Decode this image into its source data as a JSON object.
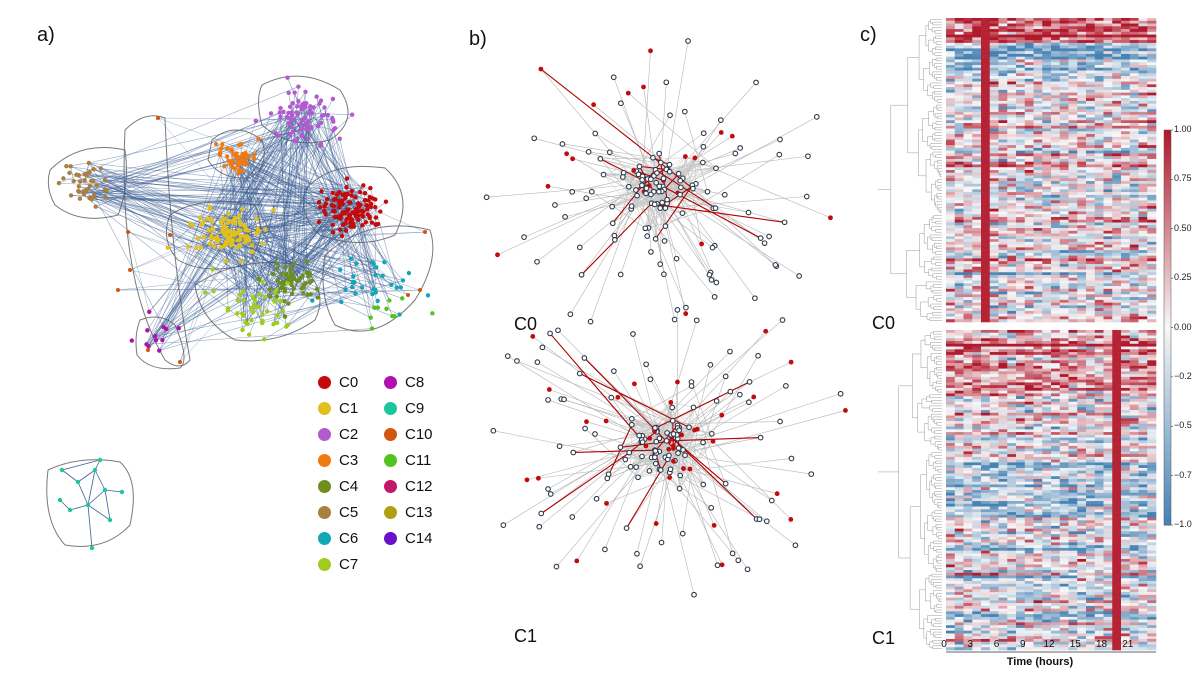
{
  "panel_labels": {
    "a": "a)",
    "b": "b)",
    "c": "c)"
  },
  "network_b": {
    "top_label": "C0",
    "bottom_label": "C1"
  },
  "legend": [
    {
      "label": "C0",
      "color": "#c40a0a"
    },
    {
      "label": "C8",
      "color": "#b010b0"
    },
    {
      "label": "C1",
      "color": "#e1bf1f"
    },
    {
      "label": "C9",
      "color": "#1ec79a"
    },
    {
      "label": "C2",
      "color": "#b45ad0"
    },
    {
      "label": "C10",
      "color": "#d1560e"
    },
    {
      "label": "C3",
      "color": "#f07a12"
    },
    {
      "label": "C11",
      "color": "#52c41e"
    },
    {
      "label": "C4",
      "color": "#6f8e1e"
    },
    {
      "label": "C12",
      "color": "#c2186b"
    },
    {
      "label": "C5",
      "color": "#a98040"
    },
    {
      "label": "C13",
      "color": "#b0a010"
    },
    {
      "label": "C6",
      "color": "#12a7b7"
    },
    {
      "label": "C14",
      "color": "#6a10c8"
    },
    {
      "label": "C7",
      "color": "#9fcc1f"
    }
  ],
  "heatmap": {
    "top_label": "C0",
    "bottom_label": "C1",
    "x_ticks": [
      "0",
      "3",
      "6",
      "9",
      "12",
      "15",
      "18",
      "21"
    ],
    "x_title": "Time (hours)",
    "colorbar_ticks": [
      "1.00",
      "0.75",
      "0.50",
      "0.25",
      "0.00",
      "−0.2",
      "−0.5",
      "−0.7",
      "−1.0"
    ],
    "colors": {
      "high": "#b2182b",
      "mid": "#f7f7f7",
      "low": "#4682b4"
    }
  }
}
